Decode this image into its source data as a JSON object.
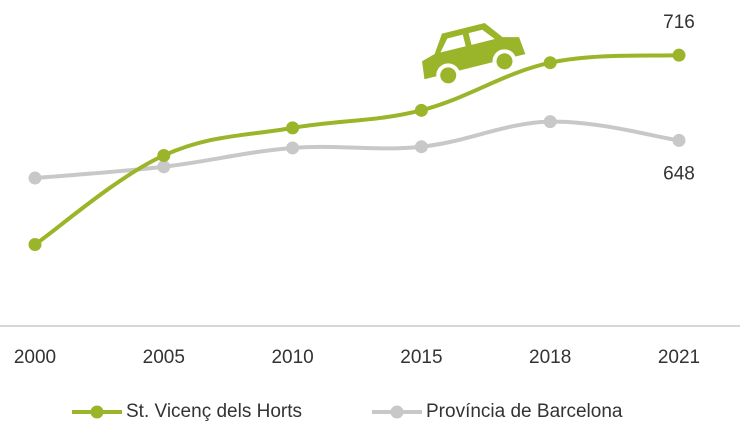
{
  "chart_data": {
    "type": "line",
    "categories": [
      "2000",
      "2005",
      "2010",
      "2015",
      "2018",
      "2021"
    ],
    "series": [
      {
        "name": "St. Vicenç dels Horts",
        "color": "#9bb52a",
        "values": [
          565,
          636,
          658,
          672,
          710,
          716
        ]
      },
      {
        "name": "Província de Barcelona",
        "color": "#c8c8c8",
        "values": [
          618,
          627,
          642,
          643,
          663,
          648
        ]
      }
    ],
    "ylim": [
      500,
      760
    ]
  }
}
